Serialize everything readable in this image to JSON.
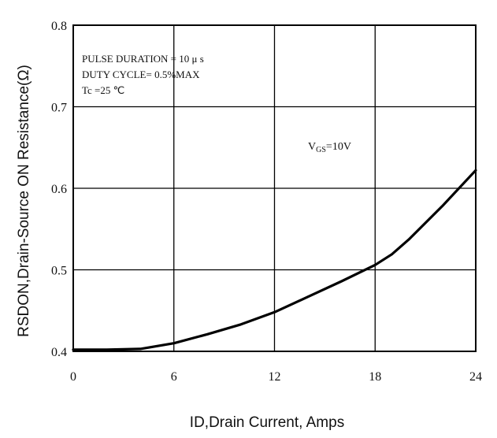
{
  "chart_data": {
    "type": "line",
    "title": "",
    "xlabel": "ID,Drain Current, Amps",
    "ylabel": "RSDON,Drain-Source ON Resistance(Ω)",
    "xlim": [
      0,
      24
    ],
    "ylim": [
      0.4,
      0.8
    ],
    "x_ticks": [
      "0",
      "6",
      "12",
      "18",
      "24"
    ],
    "y_ticks": [
      "0.4",
      "0.5",
      "0.6",
      "0.7",
      "0.8"
    ],
    "grid": true,
    "annotations": [
      "PULSE    DURATION = 10 μ s",
      "DUTY    CYCLE= 0.5%MAX",
      "Tc =25  ℃"
    ],
    "series": [
      {
        "label_main": "V",
        "label_sub": "GS",
        "label_tail": "=10V",
        "x": [
          0,
          2,
          4,
          6,
          8,
          10,
          12,
          14,
          16,
          18,
          19,
          20,
          22,
          24
        ],
        "y": [
          0.402,
          0.402,
          0.403,
          0.41,
          0.421,
          0.433,
          0.448,
          0.467,
          0.486,
          0.506,
          0.519,
          0.537,
          0.578,
          0.622
        ]
      }
    ],
    "colors": {
      "line": "#000000",
      "grid": "#000000"
    }
  }
}
